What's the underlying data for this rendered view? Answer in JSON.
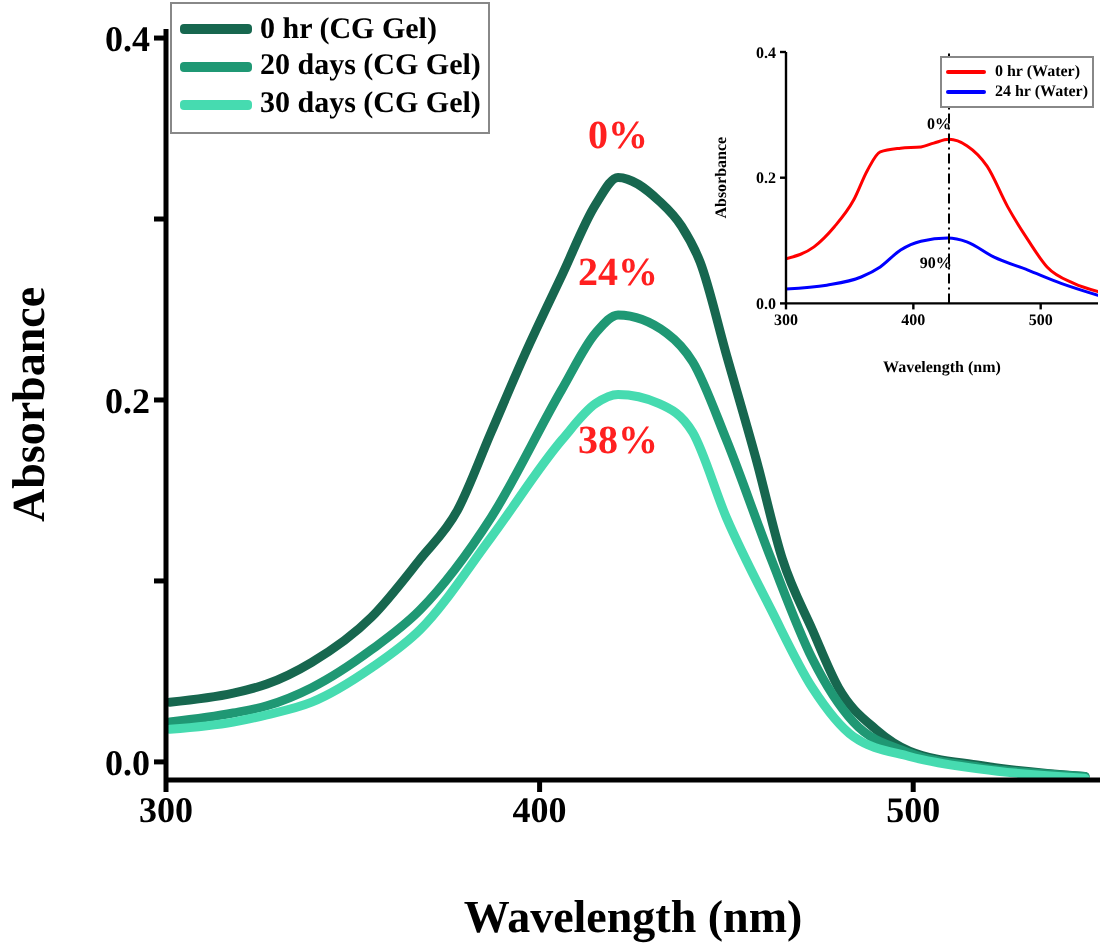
{
  "chart_data": [
    {
      "type": "line",
      "xlabel": "Wavelength (nm)",
      "ylabel": "Absorbance",
      "xlim": [
        300,
        550
      ],
      "ylim": [
        -0.01,
        0.405
      ],
      "xticks": [
        300,
        400,
        500
      ],
      "yticks": [
        {
          "value": 0,
          "label": "0.0"
        },
        {
          "value": 0.1,
          "label": null
        },
        {
          "value": 0.2,
          "label": "0.2"
        },
        {
          "value": 0.3,
          "label": null
        },
        {
          "value": 0.4,
          "label": "0.4"
        }
      ],
      "grid": false,
      "legend": "top left",
      "marker": "none",
      "line_style": "solid",
      "annotations": [
        "0%",
        "24%",
        "38%"
      ],
      "series": [
        {
          "name": "0 hr (CG Gel)",
          "color": "#17674f",
          "x": [
            301,
            318,
            327,
            339,
            355,
            368,
            378,
            387,
            396,
            406,
            415,
            421,
            432,
            438,
            443,
            450,
            458,
            465,
            473,
            480,
            490,
            499,
            518,
            546
          ],
          "values": [
            0.033,
            0.038,
            0.043,
            0.055,
            0.08,
            0.112,
            0.139,
            0.182,
            0.225,
            0.269,
            0.308,
            0.323,
            0.31,
            0.296,
            0.276,
            0.225,
            0.167,
            0.112,
            0.073,
            0.041,
            0.018,
            0.006,
            -0.002,
            -0.008
          ]
        },
        {
          "name": "20 days (CG Gel)",
          "color": "#1f9874",
          "x": [
            301,
            318,
            327,
            339,
            355,
            368,
            387,
            406,
            415,
            421,
            434,
            441,
            450,
            462,
            473,
            484,
            499,
            518,
            546
          ],
          "values": [
            0.022,
            0.027,
            0.031,
            0.041,
            0.062,
            0.084,
            0.135,
            0.206,
            0.237,
            0.247,
            0.237,
            0.221,
            0.178,
            0.112,
            0.057,
            0.022,
            0.005,
            -0.003,
            -0.008
          ]
        },
        {
          "name": "30 days (CG Gel)",
          "color": "#46dbb0",
          "x": [
            301,
            318,
            327,
            339,
            355,
            368,
            387,
            406,
            415,
            421,
            432,
            441,
            450,
            462,
            473,
            484,
            499,
            518,
            546
          ],
          "values": [
            0.018,
            0.022,
            0.026,
            0.033,
            0.052,
            0.073,
            0.124,
            0.178,
            0.198,
            0.203,
            0.198,
            0.182,
            0.135,
            0.084,
            0.041,
            0.014,
            0.003,
            -0.004,
            -0.009
          ]
        }
      ]
    },
    {
      "type": "line",
      "xlabel": "Wavelength (nm)",
      "ylabel": "Absorbance",
      "xlim": [
        300,
        545
      ],
      "ylim": [
        0,
        0.4
      ],
      "xticks": [
        300,
        400,
        500
      ],
      "yticks": [
        {
          "value": 0,
          "label": "0.0"
        },
        {
          "value": 0.2,
          "label": "0.2"
        },
        {
          "value": 0.4,
          "label": "0.4"
        }
      ],
      "grid": false,
      "legend": "top right",
      "marker": "none",
      "line_style": "solid",
      "ref_lines": [
        {
          "axis": "x",
          "value": 428,
          "line_style": "dashed"
        }
      ],
      "annotations": [
        "0%",
        "90%"
      ],
      "series": [
        {
          "name": "0 hr (Water)",
          "color": "#ff0000",
          "x": [
            300,
            322,
            338,
            353,
            364,
            374,
            390,
            406,
            416,
            428,
            442,
            458,
            474,
            490,
            505,
            526,
            545
          ],
          "values": [
            0.071,
            0.09,
            0.122,
            0.164,
            0.212,
            0.241,
            0.247,
            0.249,
            0.255,
            0.261,
            0.251,
            0.218,
            0.154,
            0.101,
            0.058,
            0.032,
            0.019
          ]
        },
        {
          "name": "24 hr (Water)",
          "color": "#0000ff",
          "x": [
            300,
            332,
            359,
            374,
            390,
            406,
            427,
            442,
            463,
            490,
            516,
            545
          ],
          "values": [
            0.023,
            0.029,
            0.042,
            0.058,
            0.085,
            0.099,
            0.104,
            0.098,
            0.074,
            0.053,
            0.032,
            0.013
          ]
        }
      ]
    }
  ]
}
